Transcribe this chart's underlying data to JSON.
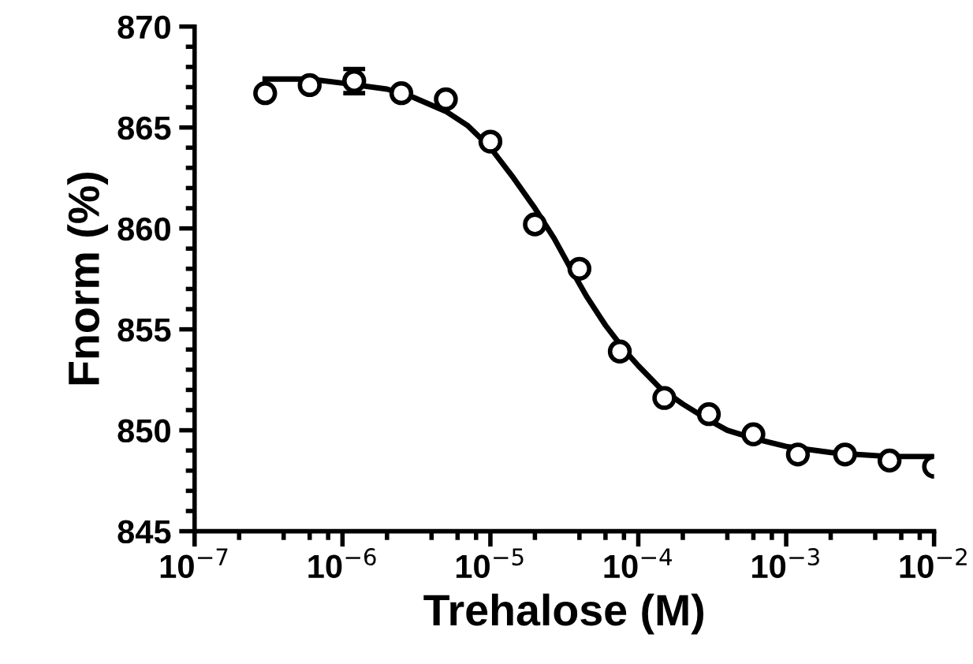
{
  "chart_data": {
    "type": "scatter",
    "xlabel": "Trehalose (M)",
    "ylabel": "Fnorm (%)",
    "log": "x",
    "grid": false,
    "legend": false,
    "series": [
      {
        "marker": "circle",
        "color": "#000000",
        "x": [
          3e-07,
          6e-07,
          1.2e-06,
          2.5e-06,
          5e-06,
          1e-05,
          2e-05,
          4e-05,
          7.5e-05,
          0.00015,
          0.0003,
          0.0006,
          0.0012,
          0.0025,
          0.005,
          0.01
        ],
        "values": [
          866.7,
          867.1,
          867.3,
          866.7,
          866.4,
          864.3,
          860.2,
          858.0,
          853.9,
          851.6,
          850.8,
          849.8,
          848.8,
          848.8,
          848.5,
          848.2
        ],
        "errors": [
          null,
          null,
          0.6,
          null,
          null,
          null,
          null,
          null,
          null,
          null,
          null,
          null,
          null,
          null,
          null,
          null
        ]
      },
      {
        "type": "line",
        "marker": "none",
        "color": "#000000",
        "line_style": "solid",
        "x": [
          3e-07,
          6e-07,
          1e-06,
          2e-06,
          3e-06,
          5e-06,
          7e-06,
          1e-05,
          1.4e-05,
          2e-05,
          2.7e-05,
          3.5e-05,
          4.5e-05,
          6e-05,
          8e-05,
          0.0001,
          0.00014,
          0.0002,
          0.0003,
          0.0004,
          0.0006,
          0.001,
          0.002,
          0.003,
          0.005,
          0.01
        ],
        "values": [
          867.4,
          867.4,
          867.2,
          866.9,
          866.5,
          865.8,
          865.1,
          864.0,
          862.6,
          861.0,
          859.5,
          858.0,
          856.6,
          855.2,
          854.0,
          853.2,
          852.1,
          851.3,
          850.5,
          850.0,
          849.6,
          849.2,
          848.9,
          848.8,
          848.7,
          848.7
        ]
      }
    ],
    "xlim": [
      1e-07,
      0.01
    ],
    "ylim": [
      845,
      870
    ],
    "xticks": [
      {
        "value": 1e-07,
        "label": "10$^{−7}$"
      },
      {
        "value": 1e-06,
        "label": "10$^{−6}$"
      },
      {
        "value": 1e-05,
        "label": "10$^{−5}$"
      },
      {
        "value": 0.0001,
        "label": "10$^{−4}$"
      },
      {
        "value": 0.001,
        "label": "10$^{−3}$"
      },
      {
        "value": 0.01,
        "label": "10$^{−2}$"
      }
    ],
    "yticks": [
      845,
      850,
      855,
      860,
      865,
      870
    ]
  }
}
